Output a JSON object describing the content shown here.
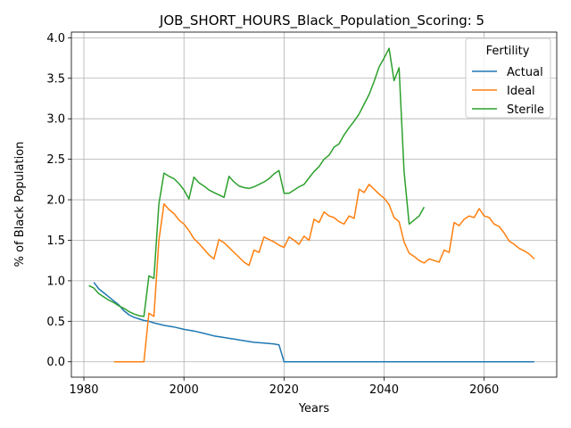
{
  "chart_data": {
    "type": "line",
    "title": "JOB_SHORT_HOURS_Black_Population_Scoring: 5",
    "xlabel": "Years",
    "ylabel": "% of Black Population",
    "xlim": [
      1977.5,
      2074.5
    ],
    "ylim": [
      -0.19,
      4.07
    ],
    "xticks": [
      1980,
      2000,
      2020,
      2040,
      2060
    ],
    "yticks": [
      0.0,
      0.5,
      1.0,
      1.5,
      2.0,
      2.5,
      3.0,
      3.5,
      4.0
    ],
    "grid": true,
    "legend": {
      "title": "Fertility",
      "placement": "top-right"
    },
    "series": [
      {
        "name": "Actual",
        "color": "#1f77b4",
        "points": [
          [
            1982,
            0.98
          ],
          [
            1983,
            0.9
          ],
          [
            1984,
            0.85
          ],
          [
            1985,
            0.8
          ],
          [
            1986,
            0.75
          ],
          [
            1987,
            0.7
          ],
          [
            1988,
            0.63
          ],
          [
            1989,
            0.58
          ],
          [
            1990,
            0.55
          ],
          [
            1991,
            0.53
          ],
          [
            1992,
            0.51
          ],
          [
            1993,
            0.5
          ],
          [
            1994,
            0.48
          ],
          [
            1996,
            0.45
          ],
          [
            1998,
            0.43
          ],
          [
            2000,
            0.4
          ],
          [
            2002,
            0.38
          ],
          [
            2004,
            0.35
          ],
          [
            2006,
            0.32
          ],
          [
            2008,
            0.3
          ],
          [
            2010,
            0.28
          ],
          [
            2012,
            0.26
          ],
          [
            2014,
            0.24
          ],
          [
            2016,
            0.23
          ],
          [
            2018,
            0.22
          ],
          [
            2019,
            0.21
          ],
          [
            2020,
            0.0
          ],
          [
            2030,
            0.0
          ],
          [
            2040,
            0.0
          ],
          [
            2050,
            0.0
          ],
          [
            2060,
            0.0
          ],
          [
            2070,
            0.0
          ]
        ]
      },
      {
        "name": "Ideal",
        "color": "#ff7f0e",
        "points": [
          [
            1986,
            0.0
          ],
          [
            1992,
            0.0
          ],
          [
            1993,
            0.6
          ],
          [
            1994,
            0.56
          ],
          [
            1995,
            1.5
          ],
          [
            1996,
            1.95
          ],
          [
            1997,
            1.88
          ],
          [
            1998,
            1.83
          ],
          [
            1999,
            1.75
          ],
          [
            2000,
            1.7
          ],
          [
            2001,
            1.62
          ],
          [
            2002,
            1.52
          ],
          [
            2003,
            1.46
          ],
          [
            2004,
            1.39
          ],
          [
            2005,
            1.32
          ],
          [
            2006,
            1.27
          ],
          [
            2007,
            1.51
          ],
          [
            2008,
            1.47
          ],
          [
            2009,
            1.41
          ],
          [
            2010,
            1.35
          ],
          [
            2011,
            1.29
          ],
          [
            2012,
            1.23
          ],
          [
            2013,
            1.19
          ],
          [
            2014,
            1.38
          ],
          [
            2015,
            1.35
          ],
          [
            2016,
            1.54
          ],
          [
            2017,
            1.51
          ],
          [
            2018,
            1.48
          ],
          [
            2019,
            1.44
          ],
          [
            2020,
            1.41
          ],
          [
            2021,
            1.54
          ],
          [
            2022,
            1.5
          ],
          [
            2023,
            1.45
          ],
          [
            2024,
            1.55
          ],
          [
            2025,
            1.5
          ],
          [
            2026,
            1.76
          ],
          [
            2027,
            1.72
          ],
          [
            2028,
            1.85
          ],
          [
            2029,
            1.8
          ],
          [
            2030,
            1.78
          ],
          [
            2031,
            1.73
          ],
          [
            2032,
            1.7
          ],
          [
            2033,
            1.8
          ],
          [
            2034,
            1.77
          ],
          [
            2035,
            2.13
          ],
          [
            2036,
            2.09
          ],
          [
            2037,
            2.19
          ],
          [
            2038,
            2.13
          ],
          [
            2039,
            2.07
          ],
          [
            2040,
            2.02
          ],
          [
            2041,
            1.94
          ],
          [
            2042,
            1.78
          ],
          [
            2043,
            1.73
          ],
          [
            2044,
            1.48
          ],
          [
            2045,
            1.34
          ],
          [
            2046,
            1.3
          ],
          [
            2047,
            1.25
          ],
          [
            2048,
            1.22
          ],
          [
            2049,
            1.27
          ],
          [
            2050,
            1.25
          ],
          [
            2051,
            1.23
          ],
          [
            2052,
            1.38
          ],
          [
            2053,
            1.35
          ],
          [
            2054,
            1.72
          ],
          [
            2055,
            1.68
          ],
          [
            2056,
            1.76
          ],
          [
            2057,
            1.8
          ],
          [
            2058,
            1.78
          ],
          [
            2059,
            1.89
          ],
          [
            2060,
            1.8
          ],
          [
            2061,
            1.78
          ],
          [
            2062,
            1.7
          ],
          [
            2063,
            1.67
          ],
          [
            2064,
            1.59
          ],
          [
            2065,
            1.49
          ],
          [
            2066,
            1.45
          ],
          [
            2067,
            1.4
          ],
          [
            2068,
            1.37
          ],
          [
            2069,
            1.33
          ],
          [
            2070,
            1.27
          ]
        ]
      },
      {
        "name": "Sterile",
        "color": "#2ca02c",
        "points": [
          [
            1981,
            0.94
          ],
          [
            1982,
            0.91
          ],
          [
            1983,
            0.84
          ],
          [
            1984,
            0.8
          ],
          [
            1985,
            0.76
          ],
          [
            1986,
            0.73
          ],
          [
            1987,
            0.69
          ],
          [
            1988,
            0.66
          ],
          [
            1989,
            0.62
          ],
          [
            1990,
            0.59
          ],
          [
            1991,
            0.57
          ],
          [
            1992,
            0.56
          ],
          [
            1993,
            1.06
          ],
          [
            1994,
            1.03
          ],
          [
            1995,
            1.95
          ],
          [
            1996,
            2.33
          ],
          [
            1997,
            2.29
          ],
          [
            1998,
            2.26
          ],
          [
            1999,
            2.2
          ],
          [
            2000,
            2.12
          ],
          [
            2001,
            2.01
          ],
          [
            2002,
            2.28
          ],
          [
            2003,
            2.21
          ],
          [
            2004,
            2.17
          ],
          [
            2005,
            2.12
          ],
          [
            2006,
            2.09
          ],
          [
            2007,
            2.06
          ],
          [
            2008,
            2.03
          ],
          [
            2009,
            2.29
          ],
          [
            2010,
            2.22
          ],
          [
            2011,
            2.17
          ],
          [
            2012,
            2.15
          ],
          [
            2013,
            2.14
          ],
          [
            2014,
            2.16
          ],
          [
            2015,
            2.19
          ],
          [
            2016,
            2.22
          ],
          [
            2017,
            2.26
          ],
          [
            2018,
            2.32
          ],
          [
            2019,
            2.36
          ],
          [
            2020,
            2.08
          ],
          [
            2021,
            2.08
          ],
          [
            2022,
            2.12
          ],
          [
            2023,
            2.16
          ],
          [
            2024,
            2.19
          ],
          [
            2025,
            2.27
          ],
          [
            2026,
            2.35
          ],
          [
            2027,
            2.41
          ],
          [
            2028,
            2.5
          ],
          [
            2029,
            2.55
          ],
          [
            2030,
            2.65
          ],
          [
            2031,
            2.69
          ],
          [
            2032,
            2.8
          ],
          [
            2033,
            2.89
          ],
          [
            2034,
            2.97
          ],
          [
            2035,
            3.06
          ],
          [
            2036,
            3.18
          ],
          [
            2037,
            3.3
          ],
          [
            2038,
            3.46
          ],
          [
            2039,
            3.64
          ],
          [
            2040,
            3.75
          ],
          [
            2041,
            3.87
          ],
          [
            2042,
            3.47
          ],
          [
            2043,
            3.63
          ],
          [
            2044,
            2.35
          ],
          [
            2045,
            1.7
          ],
          [
            2046,
            1.75
          ],
          [
            2047,
            1.8
          ],
          [
            2048,
            1.91
          ]
        ]
      }
    ]
  }
}
